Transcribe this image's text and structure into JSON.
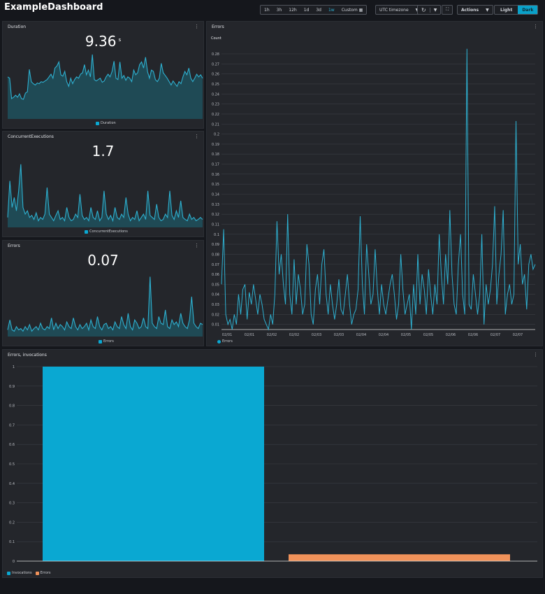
{
  "header": {
    "title": "ExampleDashboard"
  },
  "toolbar": {
    "ranges": [
      "1h",
      "3h",
      "12h",
      "1d",
      "3d",
      "1w",
      "Custom"
    ],
    "selected_range": "1w",
    "timezone": "UTC timezone",
    "actions": "Actions",
    "light": "Light",
    "dark": "Dark",
    "theme": "Dark"
  },
  "colors": {
    "accent": "#2eb0d0",
    "invocations": "#0aa8d2",
    "errors_bar": "#f0925a",
    "area": "#1f4a55"
  },
  "widgets": {
    "duration": {
      "title": "Duration",
      "value": "9.36",
      "unit": "s",
      "legend": "Duration"
    },
    "concurrent": {
      "title": "ConcurrentExecutions",
      "value": "1.7",
      "legend": "ConcurrentExecutions"
    },
    "errors_small": {
      "title": "Errors",
      "value": "0.07",
      "legend": "Errors"
    },
    "errors_line": {
      "title": "Errors",
      "legend": "Errors"
    },
    "bar": {
      "title": "Errors, invocations"
    }
  },
  "chart_data": [
    {
      "type": "area",
      "name": "Duration",
      "values": [
        0.62,
        0.6,
        0.3,
        0.32,
        0.35,
        0.32,
        0.37,
        0.3,
        0.29,
        0.38,
        0.4,
        0.73,
        0.55,
        0.52,
        0.5,
        0.53,
        0.52,
        0.55,
        0.54,
        0.56,
        0.58,
        0.62,
        0.66,
        0.6,
        0.75,
        0.78,
        0.84,
        0.65,
        0.63,
        0.7,
        0.55,
        0.48,
        0.6,
        0.52,
        0.58,
        0.62,
        0.6,
        0.66,
        0.68,
        0.8,
        0.65,
        0.72,
        0.62,
        0.95,
        0.58,
        0.56,
        0.58,
        0.6,
        0.54,
        0.56,
        0.62,
        0.66,
        0.62,
        0.7,
        0.85,
        0.6,
        0.58,
        0.84,
        0.6,
        0.64,
        0.57,
        0.62,
        0.6,
        0.55,
        0.72,
        0.65,
        0.68,
        0.8,
        0.84,
        0.75,
        0.91,
        0.7,
        0.6,
        0.72,
        0.7,
        0.58,
        0.55,
        0.6,
        0.82,
        0.68,
        0.64,
        0.6,
        0.55,
        0.5,
        0.56,
        0.52,
        0.48,
        0.55,
        0.52,
        0.62,
        0.7,
        0.65,
        0.75,
        0.6,
        0.55,
        0.6,
        0.66,
        0.62,
        0.65,
        0.6
      ]
    },
    {
      "type": "area",
      "name": "ConcurrentExecutions",
      "values": [
        0.15,
        0.7,
        0.3,
        0.45,
        0.25,
        0.55,
        0.95,
        0.3,
        0.2,
        0.25,
        0.15,
        0.18,
        0.12,
        0.22,
        0.1,
        0.15,
        0.12,
        0.2,
        0.6,
        0.2,
        0.15,
        0.1,
        0.18,
        0.25,
        0.12,
        0.15,
        0.1,
        0.3,
        0.15,
        0.1,
        0.12,
        0.2,
        0.15,
        0.5,
        0.18,
        0.12,
        0.15,
        0.1,
        0.3,
        0.15,
        0.12,
        0.25,
        0.1,
        0.15,
        0.55,
        0.2,
        0.12,
        0.18,
        0.1,
        0.3,
        0.15,
        0.12,
        0.2,
        0.15,
        0.45,
        0.2,
        0.1,
        0.15,
        0.12,
        0.25,
        0.1,
        0.15,
        0.2,
        0.12,
        0.55,
        0.18,
        0.15,
        0.12,
        0.35,
        0.15,
        0.1,
        0.12,
        0.2,
        0.15,
        0.55,
        0.18,
        0.12,
        0.25,
        0.15,
        0.4,
        0.15,
        0.12,
        0.1,
        0.2,
        0.12,
        0.15,
        0.1,
        0.12,
        0.15,
        0.12
      ]
    },
    {
      "type": "area",
      "name": "Errors",
      "values": [
        0.1,
        0.25,
        0.1,
        0.08,
        0.15,
        0.1,
        0.12,
        0.08,
        0.15,
        0.1,
        0.18,
        0.08,
        0.12,
        0.15,
        0.1,
        0.2,
        0.12,
        0.1,
        0.15,
        0.12,
        0.28,
        0.1,
        0.2,
        0.12,
        0.18,
        0.15,
        0.1,
        0.22,
        0.15,
        0.12,
        0.28,
        0.15,
        0.1,
        0.18,
        0.12,
        0.15,
        0.2,
        0.1,
        0.25,
        0.15,
        0.12,
        0.3,
        0.15,
        0.1,
        0.18,
        0.2,
        0.12,
        0.15,
        0.1,
        0.22,
        0.15,
        0.12,
        0.3,
        0.18,
        0.12,
        0.35,
        0.15,
        0.1,
        0.25,
        0.2,
        0.12,
        0.15,
        0.28,
        0.15,
        0.12,
        0.9,
        0.2,
        0.15,
        0.12,
        0.3,
        0.2,
        0.18,
        0.4,
        0.15,
        0.12,
        0.25,
        0.18,
        0.22,
        0.15,
        0.35,
        0.2,
        0.15,
        0.12,
        0.25,
        0.6,
        0.2,
        0.15,
        0.12,
        0.2,
        0.18
      ]
    },
    {
      "type": "line",
      "name": "Errors",
      "title": "Errors",
      "ylabel": "Count",
      "ylim": [
        0,
        0.28
      ],
      "yticks": [
        0.01,
        0.02,
        0.03,
        0.04,
        0.05,
        0.06,
        0.07,
        0.08,
        0.09,
        0.1,
        0.11,
        0.12,
        0.13,
        0.14,
        0.15,
        0.16,
        0.17,
        0.18,
        0.19,
        0.2,
        0.21,
        0.22,
        0.23,
        0.24,
        0.25,
        0.26,
        0.27,
        0.28
      ],
      "xticks": [
        "02/01",
        "02/01",
        "02/02",
        "02/02",
        "02/03",
        "02/03",
        "02/04",
        "02/04",
        "02/05",
        "02/05",
        "02/06",
        "02/06",
        "02/07",
        "02/07"
      ],
      "values": [
        0.05,
        0.105,
        0.02,
        0.01,
        0.015,
        0.005,
        0.02,
        0.01,
        0.04,
        0.02,
        0.045,
        0.05,
        0.015,
        0.042,
        0.03,
        0.05,
        0.035,
        0.02,
        0.04,
        0.03,
        0.015,
        0.01,
        0.005,
        0.02,
        0.01,
        0.04,
        0.113,
        0.06,
        0.08,
        0.05,
        0.03,
        0.12,
        0.04,
        0.02,
        0.075,
        0.03,
        0.06,
        0.045,
        0.02,
        0.03,
        0.09,
        0.07,
        0.02,
        0.01,
        0.045,
        0.06,
        0.03,
        0.07,
        0.085,
        0.04,
        0.02,
        0.05,
        0.03,
        0.015,
        0.03,
        0.055,
        0.025,
        0.02,
        0.04,
        0.06,
        0.03,
        0.01,
        0.02,
        0.025,
        0.045,
        0.118,
        0.05,
        0.02,
        0.09,
        0.06,
        0.03,
        0.04,
        0.085,
        0.045,
        0.02,
        0.05,
        0.03,
        0.02,
        0.035,
        0.05,
        0.06,
        0.04,
        0.015,
        0.03,
        0.08,
        0.045,
        0.02,
        0.03,
        0.04,
        0.005,
        0.05,
        0.02,
        0.08,
        0.03,
        0.06,
        0.045,
        0.02,
        0.065,
        0.04,
        0.02,
        0.05,
        0.03,
        0.1,
        0.06,
        0.03,
        0.08,
        0.05,
        0.124,
        0.06,
        0.03,
        0.02,
        0.07,
        0.1,
        0.04,
        0.02,
        0.285,
        0.03,
        0.025,
        0.06,
        0.04,
        0.02,
        0.04,
        0.1,
        0.01,
        0.05,
        0.03,
        0.045,
        0.07,
        0.128,
        0.03,
        0.06,
        0.08,
        0.124,
        0.02,
        0.04,
        0.05,
        0.03,
        0.04,
        0.213,
        0.07,
        0.09,
        0.05,
        0.06,
        0.025,
        0.07,
        0.08,
        0.065,
        0.07
      ]
    },
    {
      "type": "bar",
      "title": "Errors, invocations",
      "categories": [
        "Invocations",
        "Errors"
      ],
      "values": [
        1,
        0.035
      ],
      "ylim": [
        0,
        1
      ],
      "yticks": [
        0,
        0.1,
        0.2,
        0.3,
        0.4,
        0.5,
        0.6,
        0.7,
        0.8,
        0.9,
        1
      ],
      "legend": [
        "Invocations",
        "Errors"
      ]
    }
  ]
}
